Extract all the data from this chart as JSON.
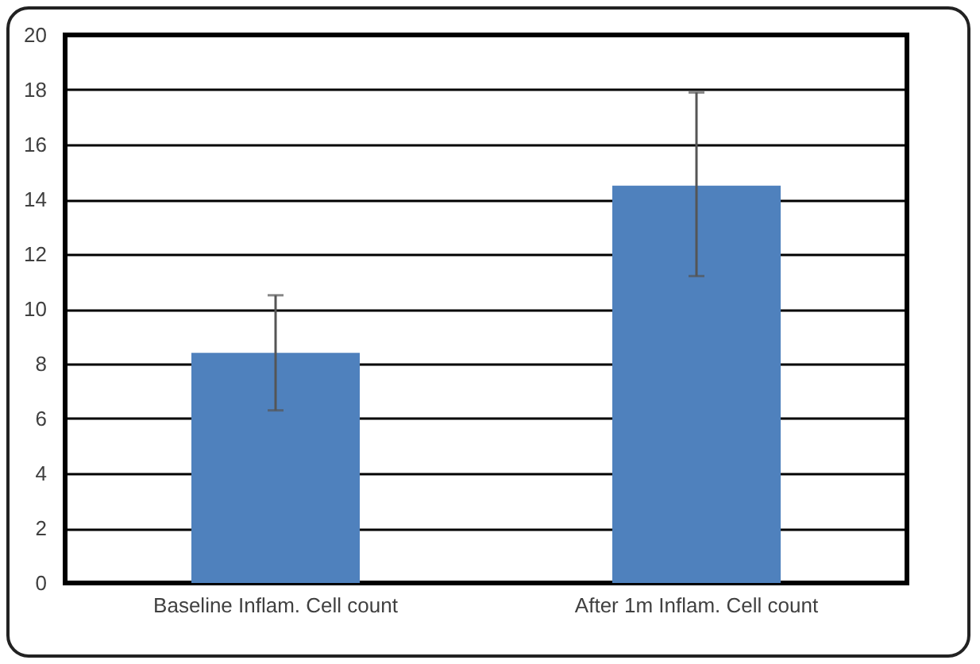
{
  "chart_data": {
    "type": "bar",
    "categories": [
      "Baseline Inflam. Cell count",
      "After 1m Inflam. Cell count"
    ],
    "values": [
      8.4,
      14.5
    ],
    "errors": [
      [
        6.3,
        10.5
      ],
      [
        11.2,
        17.9
      ]
    ],
    "color": "#4f81bd",
    "ylim": [
      0,
      20
    ],
    "yticks": [
      0,
      2,
      4,
      6,
      8,
      10,
      12,
      14,
      16,
      18,
      20
    ],
    "grid": "y"
  }
}
